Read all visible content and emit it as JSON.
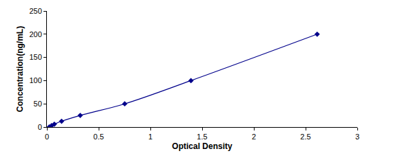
{
  "chart_data": {
    "type": "line",
    "x_label": "Optical Density",
    "y_label": "Concentration(ng/mL)",
    "x": [
      0.022,
      0.045,
      0.072,
      0.142,
      0.322,
      0.752,
      1.392,
      2.612
    ],
    "values": [
      0,
      3.125,
      6.25,
      12.5,
      25,
      50,
      100,
      200
    ],
    "color": "#00008b",
    "marker": "diamond",
    "line_style": "solid",
    "xlim": [
      0,
      3
    ],
    "xticks": [
      0,
      0.5,
      1,
      1.5,
      2,
      2.5,
      3
    ],
    "ylim": [
      0,
      250
    ],
    "yticks": [
      0,
      50,
      100,
      150,
      200,
      250
    ],
    "grid": false
  }
}
